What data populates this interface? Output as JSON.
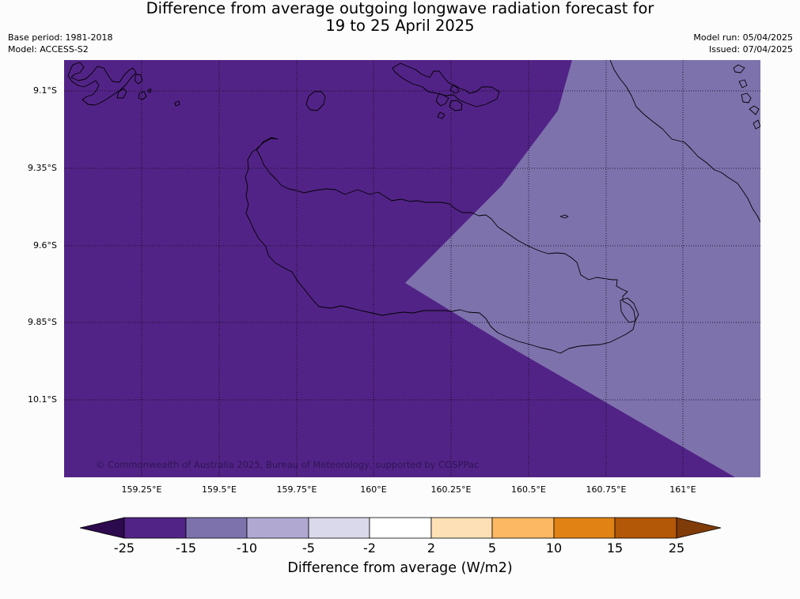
{
  "title": {
    "line1": "Difference from average outgoing longwave radiation forecast for",
    "line2": "19 to 25 April 2025"
  },
  "meta_left": {
    "base_period": "Base period: 1981-2018",
    "model": "Model: ACCESS-S2"
  },
  "meta_right": {
    "model_run": "Model run: 05/04/2025",
    "issued": "Issued: 07/04/2025"
  },
  "copyright": "© Commonwealth of Australia 2025, Bureau of Meteorology, supported by COSPPac",
  "map": {
    "lat_labels": [
      "9.1°S",
      "9.35°S",
      "9.6°S",
      "9.85°S",
      "10.1°S"
    ],
    "lon_labels": [
      "159.25°E",
      "159.5°E",
      "159.75°E",
      "160°E",
      "160.25°E",
      "160.5°E",
      "160.75°E",
      "161°E"
    ],
    "bin_colors": {
      "minus25_minus15": "#522386",
      "minus15_minus10": "#7e72ad"
    }
  },
  "colorbar": {
    "ticks": [
      "-25",
      "-15",
      "-10",
      "-5",
      "-2",
      "2",
      "5",
      "10",
      "15",
      "25"
    ],
    "colors": [
      "#2d0a4d",
      "#522386",
      "#7e72ad",
      "#b1a8d2",
      "#d9d9eb",
      "#ffffff",
      "#fee0b6",
      "#fdb863",
      "#e08214",
      "#b35806",
      "#7f3b08"
    ],
    "label": "Difference from average (W/m2)"
  }
}
